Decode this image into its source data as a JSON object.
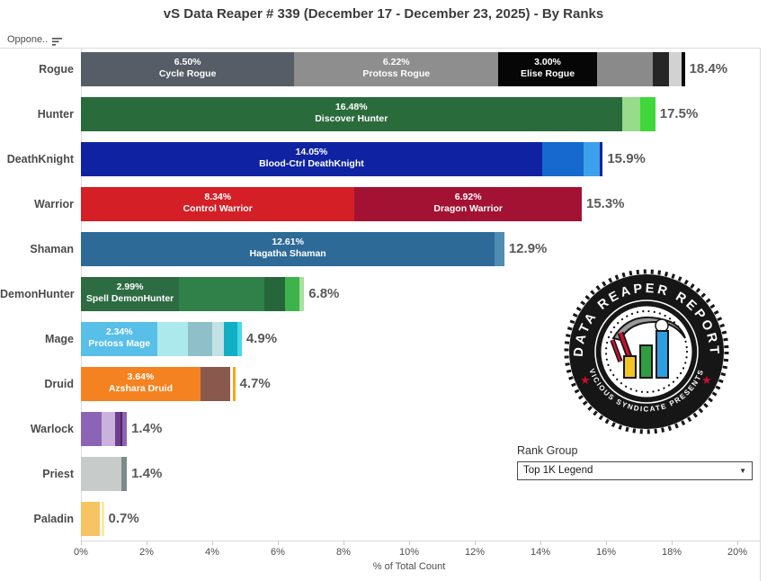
{
  "title": "vS Data Reaper # 339 (December 17 - December 23, 2025) - By Ranks",
  "header": {
    "column_label": "Oppone..",
    "sort_icon": "sort-descending-icon"
  },
  "axis": {
    "ticks": [
      "0%",
      "2%",
      "4%",
      "6%",
      "8%",
      "10%",
      "12%",
      "14%",
      "16%",
      "18%",
      "20%"
    ],
    "label": "% of Total Count",
    "max_pct": 20
  },
  "filter": {
    "label": "Rank Group",
    "selected": "Top 1K Legend",
    "caret": "▼"
  },
  "logo": {
    "top_text": "DATA REAPER REPORT",
    "bottom_text": "VICIOUS SYNDICATE PRESENTS"
  },
  "chart_data": {
    "type": "bar",
    "subtype": "horizontal_stacked",
    "xlabel": "% of Total Count",
    "xlim": [
      0,
      20
    ],
    "grid": false,
    "rows": [
      {
        "category": "Rogue",
        "total": "18.4%",
        "segments": [
          {
            "pct": 6.5,
            "color": "#565d66",
            "label_pct": "6.50%",
            "label_name": "Cycle Rogue"
          },
          {
            "pct": 6.22,
            "color": "#8e8e8e",
            "label_pct": "6.22%",
            "label_name": "Protoss Rogue"
          },
          {
            "pct": 3.0,
            "color": "#060606",
            "label_pct": "3.00%",
            "label_name": "Elise Rogue"
          },
          {
            "pct": 1.7,
            "color": "#8a8a8a"
          },
          {
            "pct": 0.5,
            "color": "#262626"
          },
          {
            "pct": 0.38,
            "color": "#d2d2d2"
          },
          {
            "pct": 0.1,
            "color": "#0a0a0a"
          }
        ]
      },
      {
        "category": "Hunter",
        "total": "17.5%",
        "segments": [
          {
            "pct": 16.48,
            "color": "#2a6b3c",
            "label_pct": "16.48%",
            "label_name": "Discover Hunter"
          },
          {
            "pct": 0.57,
            "color": "#97db8b"
          },
          {
            "pct": 0.45,
            "color": "#3fd73a"
          }
        ]
      },
      {
        "category": "DeathKnight",
        "total": "15.9%",
        "segments": [
          {
            "pct": 14.05,
            "color": "#0f23a2",
            "label_pct": "14.05%",
            "label_name": "Blood-Ctrl DeathKnight"
          },
          {
            "pct": 1.26,
            "color": "#1569cf"
          },
          {
            "pct": 0.49,
            "color": "#3da0ea"
          },
          {
            "pct": 0.1,
            "color": "#0f23a2"
          }
        ]
      },
      {
        "category": "Warrior",
        "total": "15.3%",
        "segments": [
          {
            "pct": 8.34,
            "color": "#d41f26",
            "label_pct": "8.34%",
            "label_name": "Control Warrior"
          },
          {
            "pct": 6.92,
            "color": "#a31233",
            "label_pct": "6.92%",
            "label_name": "Dragon Warrior"
          }
        ]
      },
      {
        "category": "Shaman",
        "total": "12.9%",
        "segments": [
          {
            "pct": 12.61,
            "color": "#2e6a97",
            "label_pct": "12.61%",
            "label_name": "Hagatha Shaman"
          },
          {
            "pct": 0.29,
            "color": "#4f8cb2"
          }
        ]
      },
      {
        "category": "DemonHunter",
        "total": "6.8%",
        "segments": [
          {
            "pct": 2.99,
            "color": "#2d6b42",
            "label_pct": "2.99%",
            "label_name": "Spell DemonHunter"
          },
          {
            "pct": 2.61,
            "color": "#2f8049"
          },
          {
            "pct": 0.63,
            "color": "#25663a"
          },
          {
            "pct": 0.42,
            "color": "#3db44b"
          },
          {
            "pct": 0.15,
            "color": "#a8e0a0"
          }
        ]
      },
      {
        "category": "Mage",
        "total": "4.9%",
        "segments": [
          {
            "pct": 2.34,
            "color": "#58bfe8",
            "label_pct": "2.34%",
            "label_name": "Protoss Mage"
          },
          {
            "pct": 0.93,
            "color": "#abe9ec"
          },
          {
            "pct": 0.74,
            "color": "#8fc0c9"
          },
          {
            "pct": 0.36,
            "color": "#c2e2e5"
          },
          {
            "pct": 0.41,
            "color": "#12aec4"
          },
          {
            "pct": 0.12,
            "color": "#45d9ea"
          }
        ]
      },
      {
        "category": "Druid",
        "total": "4.7%",
        "segments": [
          {
            "pct": 3.64,
            "color": "#f58220",
            "label_pct": "3.64%",
            "label_name": "Azshara Druid"
          },
          {
            "pct": 0.92,
            "color": "#8a594e"
          },
          {
            "pct": 0.06,
            "color": "#ffffff"
          },
          {
            "pct": 0.08,
            "color": "#f5a81e"
          }
        ]
      },
      {
        "category": "Warlock",
        "total": "1.4%",
        "segments": [
          {
            "pct": 0.63,
            "color": "#8c64b5"
          },
          {
            "pct": 0.4,
            "color": "#c9b3dd"
          },
          {
            "pct": 0.17,
            "color": "#703e8e"
          },
          {
            "pct": 0.06,
            "color": "#4f2460"
          },
          {
            "pct": 0.14,
            "color": "#8c64b5"
          }
        ]
      },
      {
        "category": "Priest",
        "total": "1.4%",
        "segments": [
          {
            "pct": 1.22,
            "color": "#c7cccb"
          },
          {
            "pct": 0.18,
            "color": "#7c8b89"
          }
        ]
      },
      {
        "category": "Paladin",
        "total": "0.7%",
        "segments": [
          {
            "pct": 0.58,
            "color": "#f6c463"
          },
          {
            "pct": 0.04,
            "color": "#ffffff"
          },
          {
            "pct": 0.08,
            "color": "#fbe9a6"
          }
        ]
      }
    ],
    "logo_colors": {
      "stamp": "#161616",
      "star": "#c8102e",
      "bar_yellow": "#f2c522",
      "bar_green": "#2f9e41",
      "bar_blue": "#2d9fe0",
      "scythe_red": "#c8102e",
      "blade_gray": "#9a9a9a"
    }
  }
}
